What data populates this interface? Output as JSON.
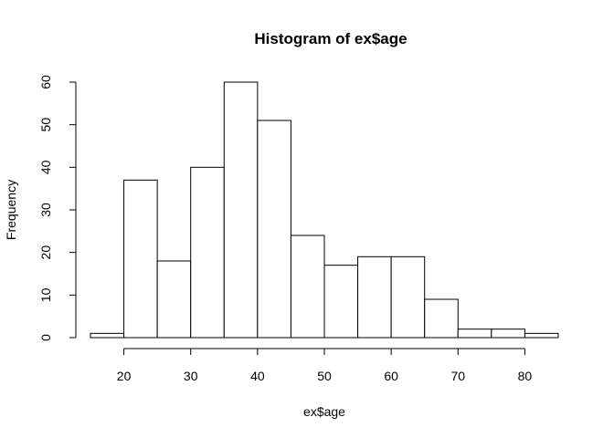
{
  "chart_data": {
    "type": "bar",
    "title": "Histogram of ex$age",
    "xlabel": "ex$age",
    "ylabel": "Frequency",
    "bins": [
      {
        "from": 15,
        "to": 20,
        "count": 1
      },
      {
        "from": 20,
        "to": 25,
        "count": 37
      },
      {
        "from": 25,
        "to": 30,
        "count": 18
      },
      {
        "from": 30,
        "to": 35,
        "count": 40
      },
      {
        "from": 35,
        "to": 40,
        "count": 60
      },
      {
        "from": 40,
        "to": 45,
        "count": 51
      },
      {
        "from": 45,
        "to": 50,
        "count": 24
      },
      {
        "from": 50,
        "to": 55,
        "count": 17
      },
      {
        "from": 55,
        "to": 60,
        "count": 19
      },
      {
        "from": 60,
        "to": 65,
        "count": 19
      },
      {
        "from": 65,
        "to": 70,
        "count": 9
      },
      {
        "from": 70,
        "to": 75,
        "count": 2
      },
      {
        "from": 75,
        "to": 80,
        "count": 2
      },
      {
        "from": 80,
        "to": 85,
        "count": 1
      }
    ],
    "xlim": [
      15,
      85
    ],
    "ylim": [
      0,
      60
    ],
    "x_ticks": [
      "20",
      "30",
      "40",
      "50",
      "60",
      "70",
      "80"
    ],
    "y_ticks": [
      "0",
      "10",
      "20",
      "30",
      "40",
      "50",
      "60"
    ],
    "grid": false,
    "bar_fill": "#ffffff",
    "bar_stroke": "#000000"
  }
}
